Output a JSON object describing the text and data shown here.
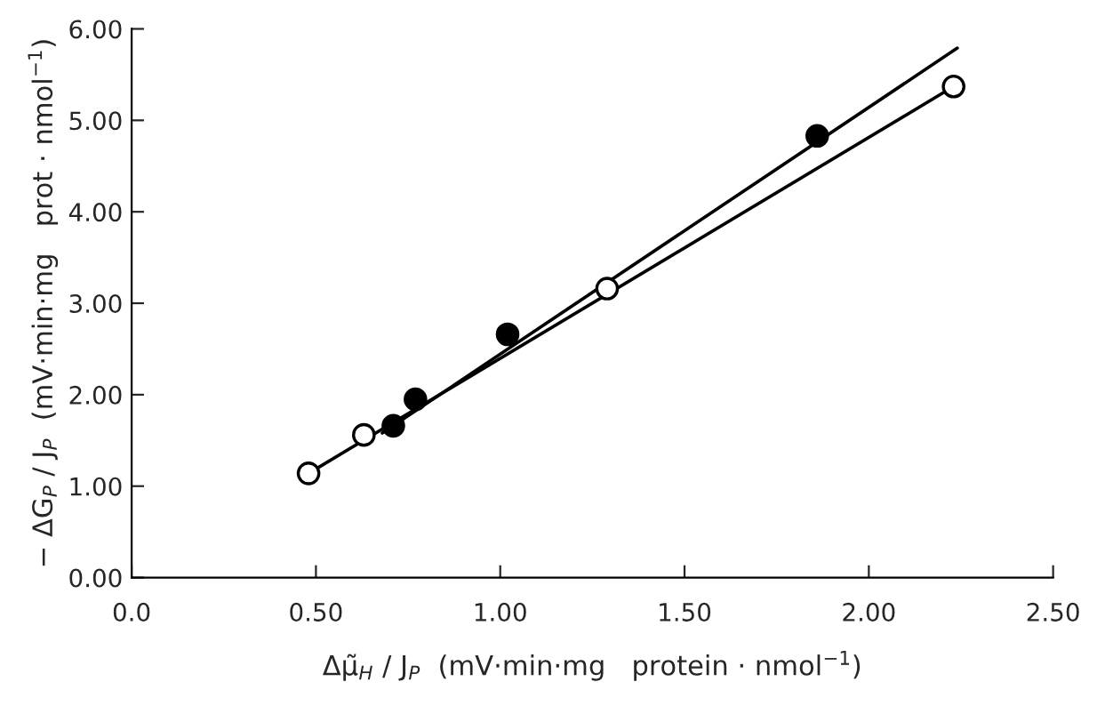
{
  "chart_data": {
    "type": "scatter",
    "xlabel": "Δμ̃$_{H}$ / J$_{P}$  (mV·min·mg   protein · nmol$^{−1}$)",
    "ylabel": "− ΔG$_{P}$ / J$_{P}$  (mV·min·mg   prot · nmol$^{−1}$)",
    "series": [
      {
        "type": "line",
        "color": "#000000",
        "marker": "none",
        "x": [
          0.68,
          2.24
        ],
        "values": [
          1.58,
          5.79
        ]
      },
      {
        "type": "line",
        "color": "#000000",
        "marker": "none",
        "x": [
          0.48,
          2.23
        ],
        "values": [
          1.14,
          5.37
        ]
      },
      {
        "color": "#000000",
        "marker": "circle",
        "x": [
          0.71,
          0.77,
          1.02,
          1.86
        ],
        "values": [
          1.66,
          1.95,
          2.66,
          4.83
        ]
      },
      {
        "color": "#ffffff",
        "marker": "circle",
        "x": [
          0.48,
          0.63,
          1.29,
          2.23
        ],
        "values": [
          1.14,
          1.56,
          3.16,
          5.37
        ]
      }
    ],
    "xlim": [
      0,
      2.5
    ],
    "xticks": [
      {
        "value": 0,
        "label": "0.0"
      },
      {
        "value": 0.5,
        "label": "0.50"
      },
      {
        "value": 1,
        "label": "1.00"
      },
      {
        "value": 1.5,
        "label": "1.50"
      },
      {
        "value": 2,
        "label": "2.00"
      },
      {
        "value": 2.5,
        "label": "2.50"
      }
    ],
    "ylim": [
      0,
      6
    ],
    "yticks": [
      {
        "value": 0,
        "label": "0.00"
      },
      {
        "value": 1,
        "label": "1.00"
      },
      {
        "value": 2,
        "label": "2.00"
      },
      {
        "value": 3,
        "label": "3.00"
      },
      {
        "value": 4,
        "label": "4.00"
      },
      {
        "value": 5,
        "label": "5.00"
      },
      {
        "value": 6,
        "label": "6.00"
      }
    ],
    "grid": false,
    "legend": false
  }
}
